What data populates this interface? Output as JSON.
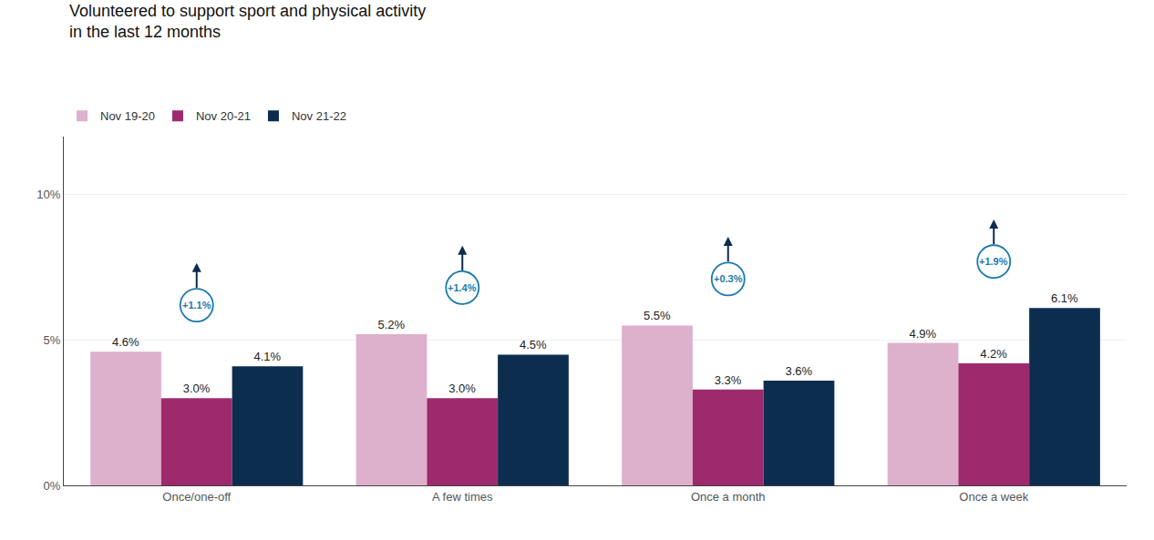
{
  "chart_data": {
    "type": "bar",
    "title": "Volunteered to support sport and physical activity\nin the last 12 months",
    "categories": [
      "Once/one-off",
      "A few times",
      "Once a month",
      "Once a week"
    ],
    "series": [
      {
        "name": "Nov 19-20",
        "color": "#ddb0cc",
        "values": [
          4.6,
          5.2,
          5.5,
          4.9
        ],
        "value_labels": [
          "4.6%",
          "5.2%",
          "5.5%",
          "4.9%"
        ]
      },
      {
        "name": "Nov 20-21",
        "color": "#9e2a6e",
        "values": [
          3.0,
          3.0,
          3.3,
          4.2
        ],
        "value_labels": [
          "3.0%",
          "3.0%",
          "3.3%",
          "4.2%"
        ]
      },
      {
        "name": "Nov 21-22",
        "color": "#0d2d4e",
        "values": [
          4.1,
          4.5,
          3.6,
          6.1
        ],
        "value_labels": [
          "4.1%",
          "4.5%",
          "3.6%",
          "6.1%"
        ]
      }
    ],
    "data_labels": true,
    "annotations": [
      {
        "text": "+1.1%",
        "color": "#1a7aad"
      },
      {
        "text": "+1.4%",
        "color": "#1a7aad"
      },
      {
        "text": "+0.3%",
        "color": "#1a7aad"
      },
      {
        "text": "+1.9%",
        "color": "#1a7aad"
      }
    ],
    "ylim": [
      0,
      12
    ],
    "yticks": [
      {
        "value": 0,
        "label": "0%"
      },
      {
        "value": 5,
        "label": "5%"
      },
      {
        "value": 10,
        "label": "10%"
      }
    ],
    "grid": true,
    "legend": "top left"
  }
}
